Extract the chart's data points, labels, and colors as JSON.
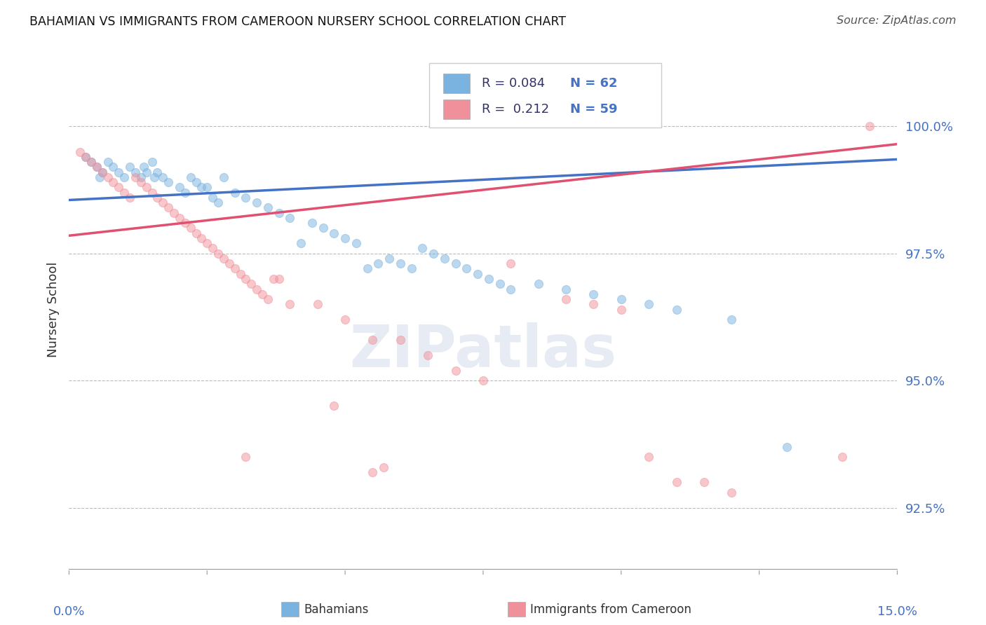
{
  "title": "BAHAMIAN VS IMMIGRANTS FROM CAMEROON NURSERY SCHOOL CORRELATION CHART",
  "source": "Source: ZipAtlas.com",
  "ylabel": "Nursery School",
  "xlim": [
    0.0,
    15.0
  ],
  "ylim": [
    91.3,
    101.5
  ],
  "yticks": [
    92.5,
    95.0,
    97.5,
    100.0
  ],
  "ytick_labels": [
    "92.5%",
    "95.0%",
    "97.5%",
    "100.0%"
  ],
  "blue_color": "#7ab3e0",
  "pink_color": "#f0909a",
  "blue_line_color": "#4472c4",
  "pink_line_color": "#e05070",
  "blue_r": "0.084",
  "blue_n": "62",
  "pink_r": "0.212",
  "pink_n": "59",
  "blue_scatter_x": [
    0.3,
    0.4,
    0.5,
    0.55,
    0.6,
    0.7,
    0.8,
    0.9,
    1.0,
    1.1,
    1.2,
    1.3,
    1.35,
    1.4,
    1.5,
    1.55,
    1.6,
    1.7,
    1.8,
    2.0,
    2.1,
    2.2,
    2.3,
    2.4,
    2.5,
    2.6,
    2.7,
    2.8,
    3.0,
    3.2,
    3.4,
    3.6,
    3.8,
    4.0,
    4.2,
    4.4,
    4.6,
    4.8,
    5.0,
    5.2,
    5.4,
    5.6,
    5.8,
    6.0,
    6.2,
    6.4,
    6.6,
    6.8,
    7.0,
    7.2,
    7.4,
    7.6,
    7.8,
    8.0,
    8.5,
    9.0,
    9.5,
    10.0,
    10.5,
    11.0,
    12.0,
    13.0
  ],
  "blue_scatter_y": [
    99.4,
    99.3,
    99.2,
    99.0,
    99.1,
    99.3,
    99.2,
    99.1,
    99.0,
    99.2,
    99.1,
    99.0,
    99.2,
    99.1,
    99.3,
    99.0,
    99.1,
    99.0,
    98.9,
    98.8,
    98.7,
    99.0,
    98.9,
    98.8,
    98.8,
    98.6,
    98.5,
    99.0,
    98.7,
    98.6,
    98.5,
    98.4,
    98.3,
    98.2,
    97.7,
    98.1,
    98.0,
    97.9,
    97.8,
    97.7,
    97.2,
    97.3,
    97.4,
    97.3,
    97.2,
    97.6,
    97.5,
    97.4,
    97.3,
    97.2,
    97.1,
    97.0,
    96.9,
    96.8,
    96.9,
    96.8,
    96.7,
    96.6,
    96.5,
    96.4,
    96.2,
    93.7
  ],
  "pink_scatter_x": [
    0.2,
    0.3,
    0.4,
    0.5,
    0.6,
    0.7,
    0.8,
    0.9,
    1.0,
    1.1,
    1.2,
    1.3,
    1.4,
    1.5,
    1.6,
    1.7,
    1.8,
    1.9,
    2.0,
    2.1,
    2.2,
    2.3,
    2.4,
    2.5,
    2.6,
    2.7,
    2.8,
    2.9,
    3.0,
    3.1,
    3.2,
    3.3,
    3.4,
    3.5,
    3.6,
    3.7,
    3.8,
    4.0,
    4.5,
    5.0,
    5.5,
    6.0,
    6.5,
    7.0,
    7.5,
    8.0,
    9.0,
    9.5,
    10.0,
    10.5,
    11.0,
    11.5,
    12.0,
    14.0,
    14.5,
    3.2,
    4.8,
    5.5,
    5.7
  ],
  "pink_scatter_y": [
    99.5,
    99.4,
    99.3,
    99.2,
    99.1,
    99.0,
    98.9,
    98.8,
    98.7,
    98.6,
    99.0,
    98.9,
    98.8,
    98.7,
    98.6,
    98.5,
    98.4,
    98.3,
    98.2,
    98.1,
    98.0,
    97.9,
    97.8,
    97.7,
    97.6,
    97.5,
    97.4,
    97.3,
    97.2,
    97.1,
    97.0,
    96.9,
    96.8,
    96.7,
    96.6,
    97.0,
    97.0,
    96.5,
    96.5,
    96.2,
    95.8,
    95.8,
    95.5,
    95.2,
    95.0,
    97.3,
    96.6,
    96.5,
    96.4,
    93.5,
    93.0,
    93.0,
    92.8,
    93.5,
    100.0,
    93.5,
    94.5,
    93.2,
    93.3
  ],
  "watermark": "ZIPatlas",
  "scatter_size": 75,
  "scatter_alpha": 0.5,
  "line_width": 2.5,
  "blue_line_y0": 98.55,
  "blue_line_y1": 99.35,
  "pink_line_y0": 97.85,
  "pink_line_y1": 99.65
}
